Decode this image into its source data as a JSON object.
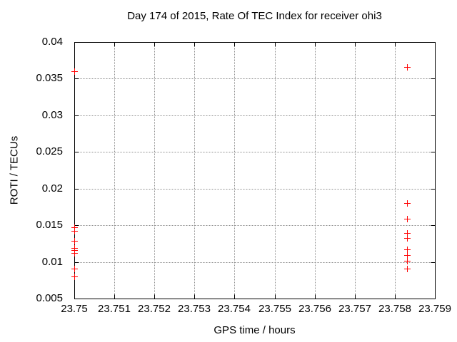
{
  "chart_data": {
    "type": "scatter",
    "title": "Day 174 of 2015, Rate Of TEC Index for receiver ohi3",
    "xlabel": "GPS time / hours",
    "ylabel": "ROTI / TECUs",
    "xlim": [
      23.75,
      23.759
    ],
    "ylim": [
      0.005,
      0.04
    ],
    "xticks": [
      23.75,
      23.751,
      23.752,
      23.753,
      23.754,
      23.755,
      23.756,
      23.757,
      23.758,
      23.759
    ],
    "xtick_labels": [
      "23.75",
      "23.751",
      "23.752",
      "23.753",
      "23.754",
      "23.755",
      "23.756",
      "23.757",
      "23.758",
      "23.759"
    ],
    "yticks": [
      0.005,
      0.01,
      0.015,
      0.02,
      0.025,
      0.03,
      0.035,
      0.04
    ],
    "ytick_labels": [
      "0.005",
      "0.01",
      "0.015",
      "0.02",
      "0.025",
      "0.03",
      "0.035",
      "0.04"
    ],
    "grid": true,
    "legend": "none",
    "marker": "plus",
    "marker_color": "#ff0000",
    "grid_color": "#909090",
    "axis_color": "#000000",
    "series": [
      {
        "name": "ROTI",
        "points": [
          [
            23.75,
            0.036
          ],
          [
            23.75,
            0.0147
          ],
          [
            23.75,
            0.0142
          ],
          [
            23.75,
            0.0129
          ],
          [
            23.75,
            0.0119
          ],
          [
            23.75,
            0.0116
          ],
          [
            23.75,
            0.0112
          ],
          [
            23.75,
            0.0091
          ],
          [
            23.75,
            0.008
          ],
          [
            23.7583,
            0.0366
          ],
          [
            23.7583,
            0.018
          ],
          [
            23.7583,
            0.0159
          ],
          [
            23.7583,
            0.0139
          ],
          [
            23.7583,
            0.0133
          ],
          [
            23.7583,
            0.0117
          ],
          [
            23.7583,
            0.0109
          ],
          [
            23.7583,
            0.0102
          ],
          [
            23.7583,
            0.0091
          ]
        ]
      }
    ]
  }
}
